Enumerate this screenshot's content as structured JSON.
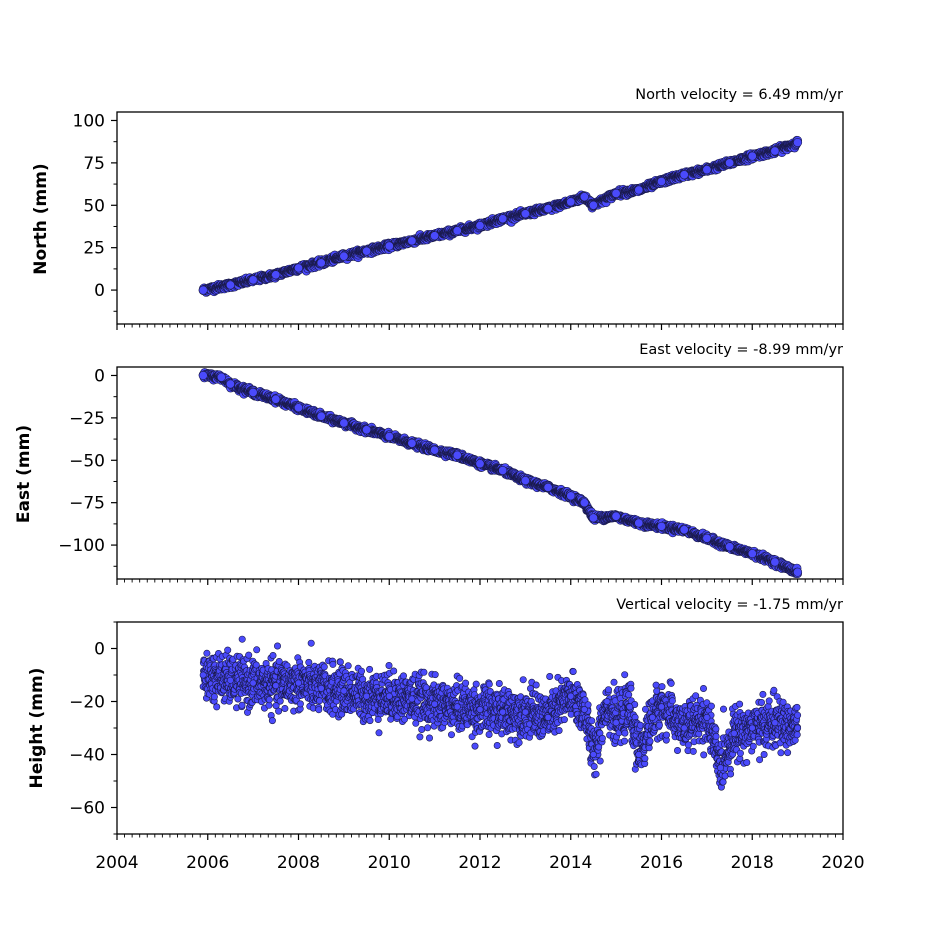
{
  "chart_data": [
    {
      "type": "scatter",
      "title": "North velocity = 6.49 mm/yr",
      "ylabel": "North (mm)",
      "xlim": [
        2004,
        2020
      ],
      "ylim": [
        -20,
        105
      ],
      "yticks": [
        0,
        25,
        50,
        75,
        100
      ],
      "x_tick_labels_shown": false,
      "series": [
        {
          "x": [
            2005.9,
            2006.5,
            2007.0,
            2007.5,
            2008.0,
            2008.5,
            2009.0,
            2009.5,
            2010.0,
            2010.5,
            2011.0,
            2011.5,
            2012.0,
            2012.5,
            2013.0,
            2013.5,
            2014.0,
            2014.3,
            2014.5,
            2015.0,
            2015.5,
            2016.0,
            2016.5,
            2017.0,
            2017.5,
            2018.0,
            2018.5,
            2019.0
          ],
          "y": [
            0,
            3,
            6,
            9,
            13,
            16,
            20,
            23,
            26,
            29,
            32,
            35,
            38,
            42,
            45,
            48,
            52,
            55,
            50,
            57,
            59,
            64,
            68,
            71,
            75,
            79,
            82,
            87
          ]
        }
      ]
    },
    {
      "type": "scatter",
      "title": "East velocity = -8.99 mm/yr",
      "ylabel": "East (mm)",
      "xlim": [
        2004,
        2020
      ],
      "ylim": [
        -120,
        5
      ],
      "yticks": [
        0,
        -25,
        -50,
        -75,
        -100
      ],
      "x_tick_labels_shown": false,
      "series": [
        {
          "x": [
            2005.9,
            2006.3,
            2006.5,
            2007.0,
            2007.5,
            2008.0,
            2008.5,
            2009.0,
            2009.5,
            2010.0,
            2010.5,
            2011.0,
            2011.5,
            2012.0,
            2012.5,
            2013.0,
            2013.5,
            2014.0,
            2014.3,
            2014.5,
            2015.0,
            2015.5,
            2016.0,
            2016.5,
            2017.0,
            2017.5,
            2018.0,
            2018.5,
            2019.0
          ],
          "y": [
            0,
            -1,
            -5,
            -10,
            -14,
            -19,
            -24,
            -28,
            -32,
            -36,
            -40,
            -44,
            -47,
            -52,
            -56,
            -62,
            -66,
            -71,
            -75,
            -84,
            -83,
            -87,
            -89,
            -91,
            -96,
            -101,
            -105,
            -110,
            -116
          ]
        }
      ]
    },
    {
      "type": "scatter",
      "title": "Vertical velocity = -1.75 mm/yr",
      "ylabel": "Height (mm)",
      "xlim": [
        2004,
        2020
      ],
      "ylim": [
        -70,
        10
      ],
      "yticks": [
        0,
        -20,
        -40,
        -60
      ],
      "xticks": [
        2004,
        2006,
        2008,
        2010,
        2012,
        2014,
        2016,
        2018,
        2020
      ],
      "x_tick_labels_shown": true,
      "series": [
        {
          "x": [
            2005.9,
            2006.5,
            2007.0,
            2007.5,
            2008.0,
            2008.5,
            2009.0,
            2009.5,
            2010.0,
            2010.5,
            2011.0,
            2011.5,
            2012.0,
            2012.5,
            2013.0,
            2013.5,
            2014.0,
            2014.3,
            2014.5,
            2014.8,
            2015.0,
            2015.3,
            2015.5,
            2015.8,
            2016.0,
            2016.5,
            2017.0,
            2017.3,
            2017.6,
            2018.0,
            2018.5,
            2019.0
          ],
          "y": [
            -10,
            -12,
            -13,
            -14,
            -13,
            -15,
            -16,
            -18,
            -18,
            -19,
            -21,
            -22,
            -23,
            -24,
            -24,
            -26,
            -18,
            -23,
            -40,
            -20,
            -28,
            -22,
            -40,
            -26,
            -22,
            -30,
            -26,
            -45,
            -32,
            -30,
            -28,
            -30
          ]
        }
      ]
    }
  ],
  "colors": {
    "marker_fill": "#4a4afc",
    "marker_edge": "#1a1a4a",
    "axis": "#000000"
  }
}
